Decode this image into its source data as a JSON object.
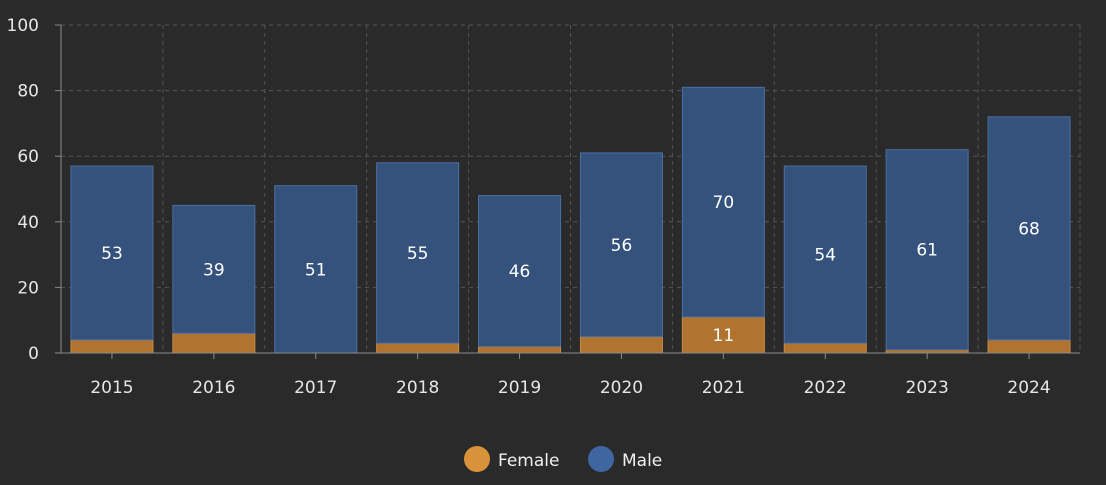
{
  "chart_data": {
    "type": "bar",
    "stacked": true,
    "categories": [
      "2015",
      "2016",
      "2017",
      "2018",
      "2019",
      "2020",
      "2021",
      "2022",
      "2023",
      "2024"
    ],
    "series": [
      {
        "name": "Female",
        "color": "#b07430",
        "legend_color": "#d9913a",
        "values": [
          4,
          6,
          0,
          3,
          2,
          5,
          11,
          3,
          1,
          4
        ]
      },
      {
        "name": "Male",
        "color": "#34527c",
        "legend_color": "#3f66a0",
        "values": [
          53,
          39,
          51,
          55,
          46,
          56,
          70,
          54,
          61,
          68
        ]
      }
    ],
    "data_labels": {
      "Female": [
        "",
        "",
        "",
        "",
        "",
        "",
        "11",
        "",
        "",
        ""
      ],
      "Male": [
        "53",
        "39",
        "51",
        "55",
        "46",
        "56",
        "70",
        "54",
        "61",
        "68"
      ]
    },
    "ylim": [
      0,
      100
    ],
    "yticks": [
      "0",
      "20",
      "40",
      "60",
      "80",
      "100"
    ],
    "grid": true,
    "legend": "bottom-center",
    "title": "",
    "xlabel": "",
    "ylabel": ""
  }
}
